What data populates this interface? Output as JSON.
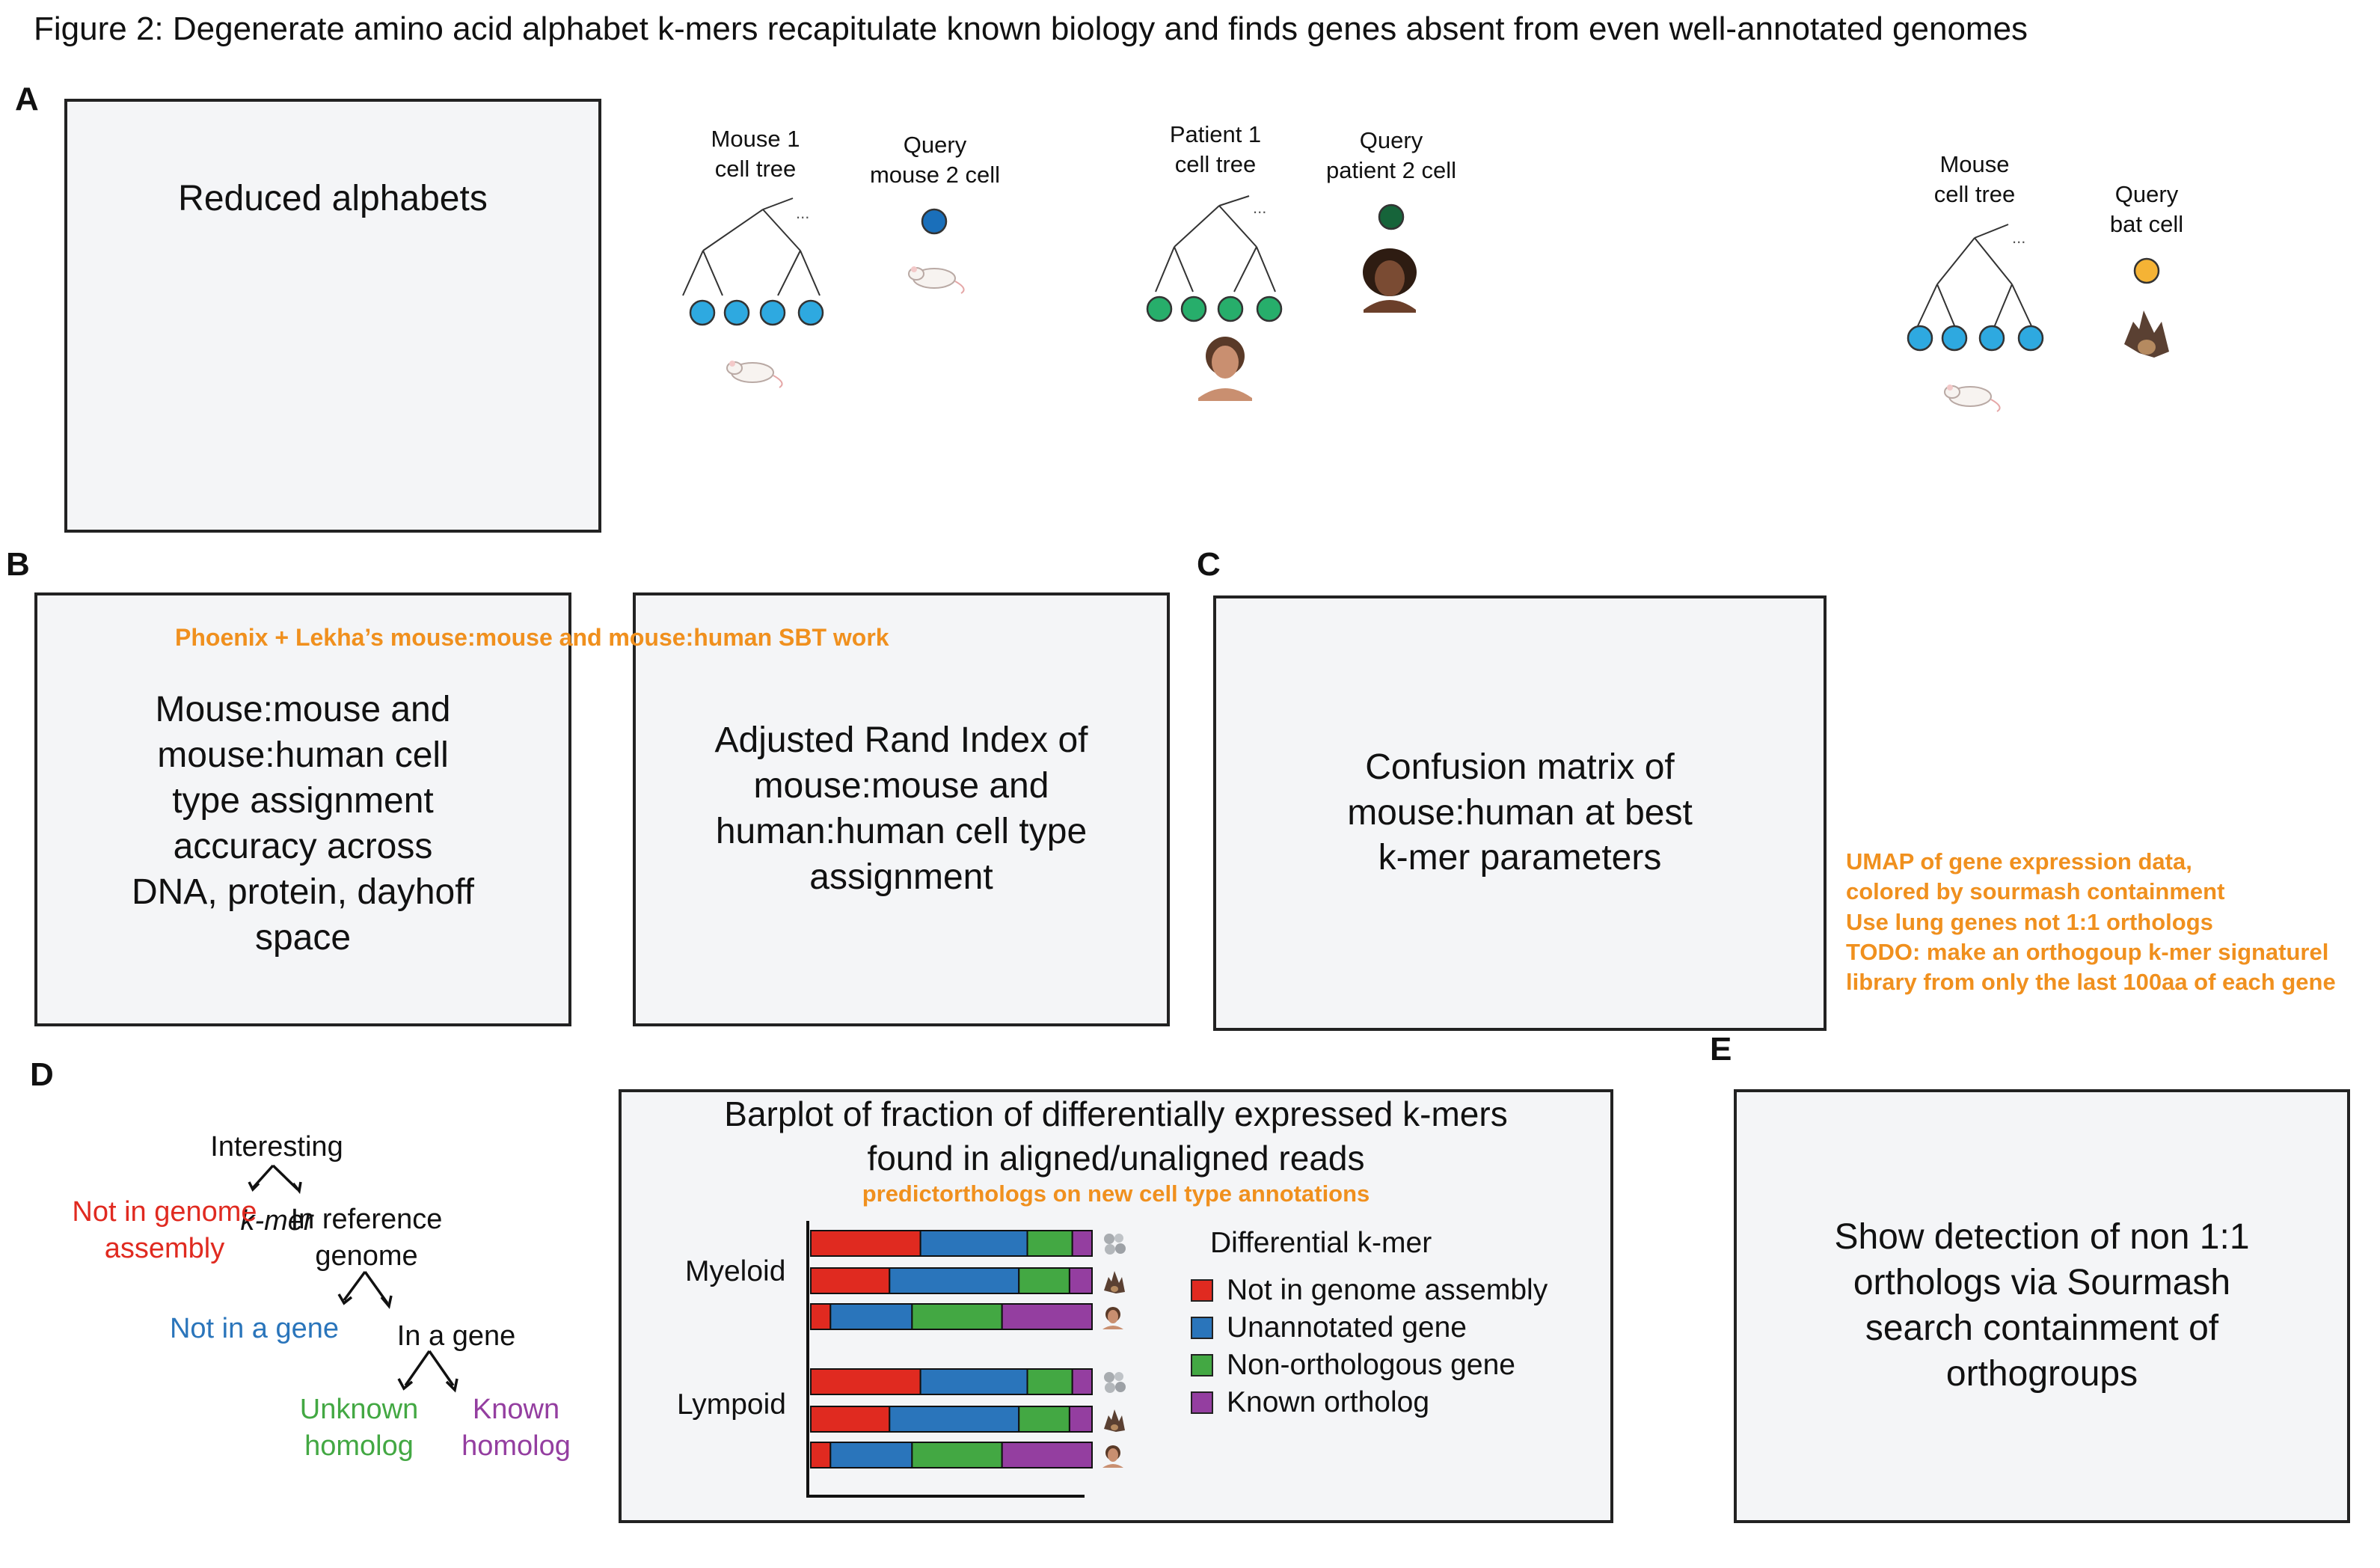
{
  "figure_title": "Figure 2: Degenerate amino acid alphabet k-mers recapitulate known biology and finds genes absent from even well-annotated genomes",
  "panels": {
    "a": {
      "label": "A",
      "box_text": "Reduced alphabets",
      "scenario1": {
        "tree_label": "Mouse 1\ncell tree",
        "query_label": "Query\nmouse 2 cell",
        "tree_color": "#2ea9e0",
        "query_color": "#1a6fba"
      },
      "scenario2": {
        "tree_label": "Patient 1\ncell tree",
        "query_label": "Query\npatient 2 cell",
        "tree_color": "#27ae6b",
        "query_color": "#16643a"
      },
      "scenario3": {
        "tree_label": "Mouse\ncell tree",
        "query_label": "Query\nbat cell",
        "tree_color": "#2ea9e0",
        "query_color": "#f5b335"
      },
      "ellipsis": "..."
    },
    "b": {
      "label": "B",
      "note": "Phoenix + Lekha’s mouse:mouse and mouse:human SBT work",
      "box1_text": "Mouse:mouse and\nmouse:human cell\ntype assignment\naccuracy across\nDNA, protein, dayhoff\nspace",
      "box2_text": "Adjusted Rand Index of\nmouse:mouse and\nhuman:human cell type\nassignment"
    },
    "c": {
      "label": "C",
      "box_text": "Confusion matrix of\nmouse:human at best\nk-mer parameters",
      "note": "UMAP of gene expression data,\ncolored by sourmash containment\nUse lung genes not 1:1 orthologs\nTODO: make an orthogoup k-mer signaturel\nlibrary from only the last 100aa of each gene"
    },
    "d": {
      "label": "D",
      "tree": {
        "root": "Interesting",
        "root_kmer": "k-mer",
        "not_in_assembly": "Not in genome\nassembly",
        "in_reference": "In reference\ngenome",
        "not_in_gene": "Not in a gene",
        "in_gene": "In a gene",
        "unknown": "Unknown\nhomolog",
        "known": "Known\nhomolog"
      },
      "barplot_title": "Barplot of fraction of differentially expressed k-mers\nfound in aligned/unaligned reads",
      "barplot_note": "predictorthologs on new cell type annotations",
      "legend_title": "Differential k-mer"
    },
    "e": {
      "label": "E",
      "box_text": "Show detection of non 1:1\northologs via Sourmash\nsearch containment of\northogroups"
    }
  },
  "colors": {
    "red": "#e02a20",
    "blue": "#2a75bb",
    "green": "#43a843",
    "purple": "#943ea0",
    "orange": "#f0901e"
  },
  "chart_data": {
    "type": "bar",
    "orientation": "horizontal",
    "stacked": true,
    "groups": [
      "Myeloid",
      "Lympoid"
    ],
    "rows_per_group": [
      "bat-icon",
      "bat-icon",
      "human-icon"
    ],
    "series": [
      {
        "name": "Not in genome assembly",
        "color": "#e02a20",
        "values": [
          0.39,
          0.28,
          0.07,
          0.39,
          0.28,
          0.07
        ]
      },
      {
        "name": "Unannotated gene",
        "color": "#2a75bb",
        "values": [
          0.38,
          0.46,
          0.29,
          0.38,
          0.46,
          0.29
        ]
      },
      {
        "name": "Non-orthologous gene",
        "color": "#43a843",
        "values": [
          0.16,
          0.18,
          0.32,
          0.16,
          0.18,
          0.32
        ]
      },
      {
        "name": "Known ortholog",
        "color": "#943ea0",
        "values": [
          0.07,
          0.08,
          0.32,
          0.07,
          0.08,
          0.32
        ]
      }
    ],
    "legend_placement": "right",
    "grid": false
  }
}
